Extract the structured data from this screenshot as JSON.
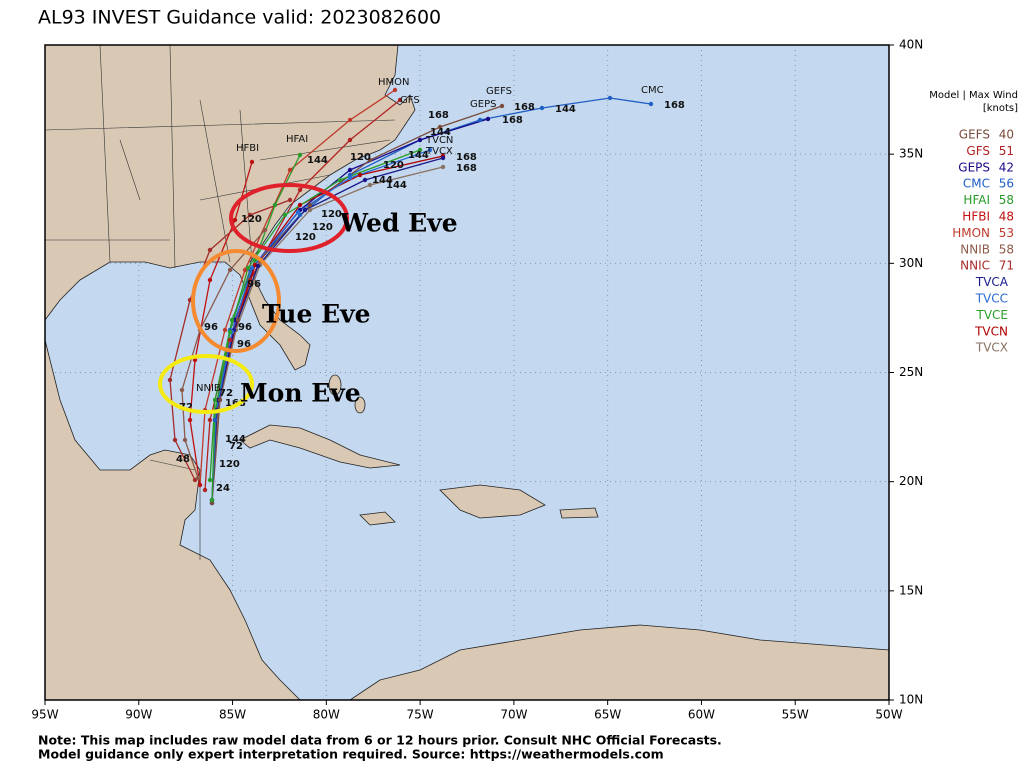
{
  "header": {
    "title": "AL93 INVEST Guidance valid: 2023082600"
  },
  "axes": {
    "lon_labels": [
      "95W",
      "90W",
      "85W",
      "80W",
      "75W",
      "70W",
      "65W",
      "60W",
      "55W",
      "50W"
    ],
    "lat_labels": [
      "40N",
      "35N",
      "30N",
      "25N",
      "20N",
      "15N",
      "10N"
    ]
  },
  "legend": {
    "header": [
      "Model | Max Wind",
      "[knots]"
    ],
    "entries": [
      {
        "name": "GEFS",
        "wind": 40,
        "color": "#7a4b3a"
      },
      {
        "name": "GFS",
        "wind": 51,
        "color": "#b22222"
      },
      {
        "name": "GEPS",
        "wind": 42,
        "color": "#1a0a8a"
      },
      {
        "name": "CMC",
        "wind": 56,
        "color": "#1f5fc4"
      },
      {
        "name": "HFAI",
        "wind": 58,
        "color": "#2a9a2a"
      },
      {
        "name": "HFBI",
        "wind": 48,
        "color": "#c01010"
      },
      {
        "name": "HMON",
        "wind": 53,
        "color": "#c0392b"
      },
      {
        "name": "NNIB",
        "wind": 58,
        "color": "#8b5a4a"
      },
      {
        "name": "NNIC",
        "wind": 71,
        "color": "#a52a2a"
      },
      {
        "name": "TVCA",
        "color": "#1a1a8a"
      },
      {
        "name": "TVCC",
        "color": "#2a6ad4"
      },
      {
        "name": "TVCE",
        "color": "#2aa02a"
      },
      {
        "name": "TVCN",
        "color": "#b00000"
      },
      {
        "name": "TVCX",
        "color": "#8a7060"
      }
    ]
  },
  "map": {
    "track_labels": [
      "CMC",
      168,
      144,
      "GEFS",
      168,
      "GEPS",
      168,
      "HMON",
      "GFS",
      168,
      144,
      "TVCN",
      "TVCX",
      168,
      168,
      "HFAI",
      "HFBI",
      144,
      120,
      144,
      120,
      144,
      144,
      120,
      120,
      120,
      120,
      96,
      96,
      96,
      96,
      "NNIB",
      72,
      72,
      168,
      144,
      72,
      120,
      48,
      24
    ],
    "annotations": [
      "Wed Eve",
      "Tue Eve",
      "Mon Eve"
    ]
  },
  "footer": {
    "lines": [
      "Note: This map includes raw model data from 6 or 12 hours prior. Consult NHC Official Forecasts.",
      "Model guidance only expert interpretation required. Source: https://weathermodels.com"
    ]
  }
}
